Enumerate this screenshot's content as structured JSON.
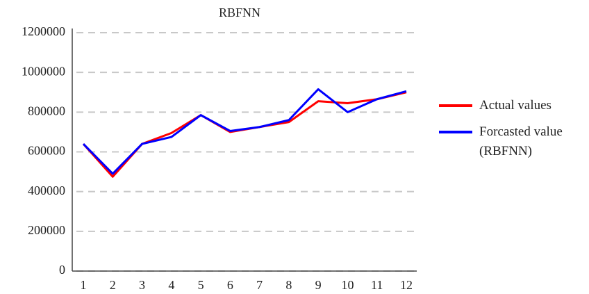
{
  "chart_data": {
    "type": "line",
    "title": "RBFNN",
    "categories": [
      "1",
      "2",
      "3",
      "4",
      "5",
      "6",
      "7",
      "8",
      "9",
      "10",
      "11",
      "12"
    ],
    "series": [
      {
        "name": "Actual values",
        "color": "#ff0000",
        "values": [
          640000,
          475000,
          640000,
          695000,
          785000,
          700000,
          725000,
          750000,
          855000,
          845000,
          865000,
          900000
        ]
      },
      {
        "name": "Forcasted value (RBFNN)",
        "color": "#0000ff",
        "values": [
          640000,
          490000,
          640000,
          675000,
          785000,
          705000,
          725000,
          760000,
          915000,
          800000,
          865000,
          905000
        ]
      }
    ],
    "ylim": [
      0,
      1200000
    ],
    "yticks": [
      0,
      200000,
      400000,
      600000,
      800000,
      1000000,
      1200000
    ],
    "grid": true,
    "legend": "right"
  }
}
